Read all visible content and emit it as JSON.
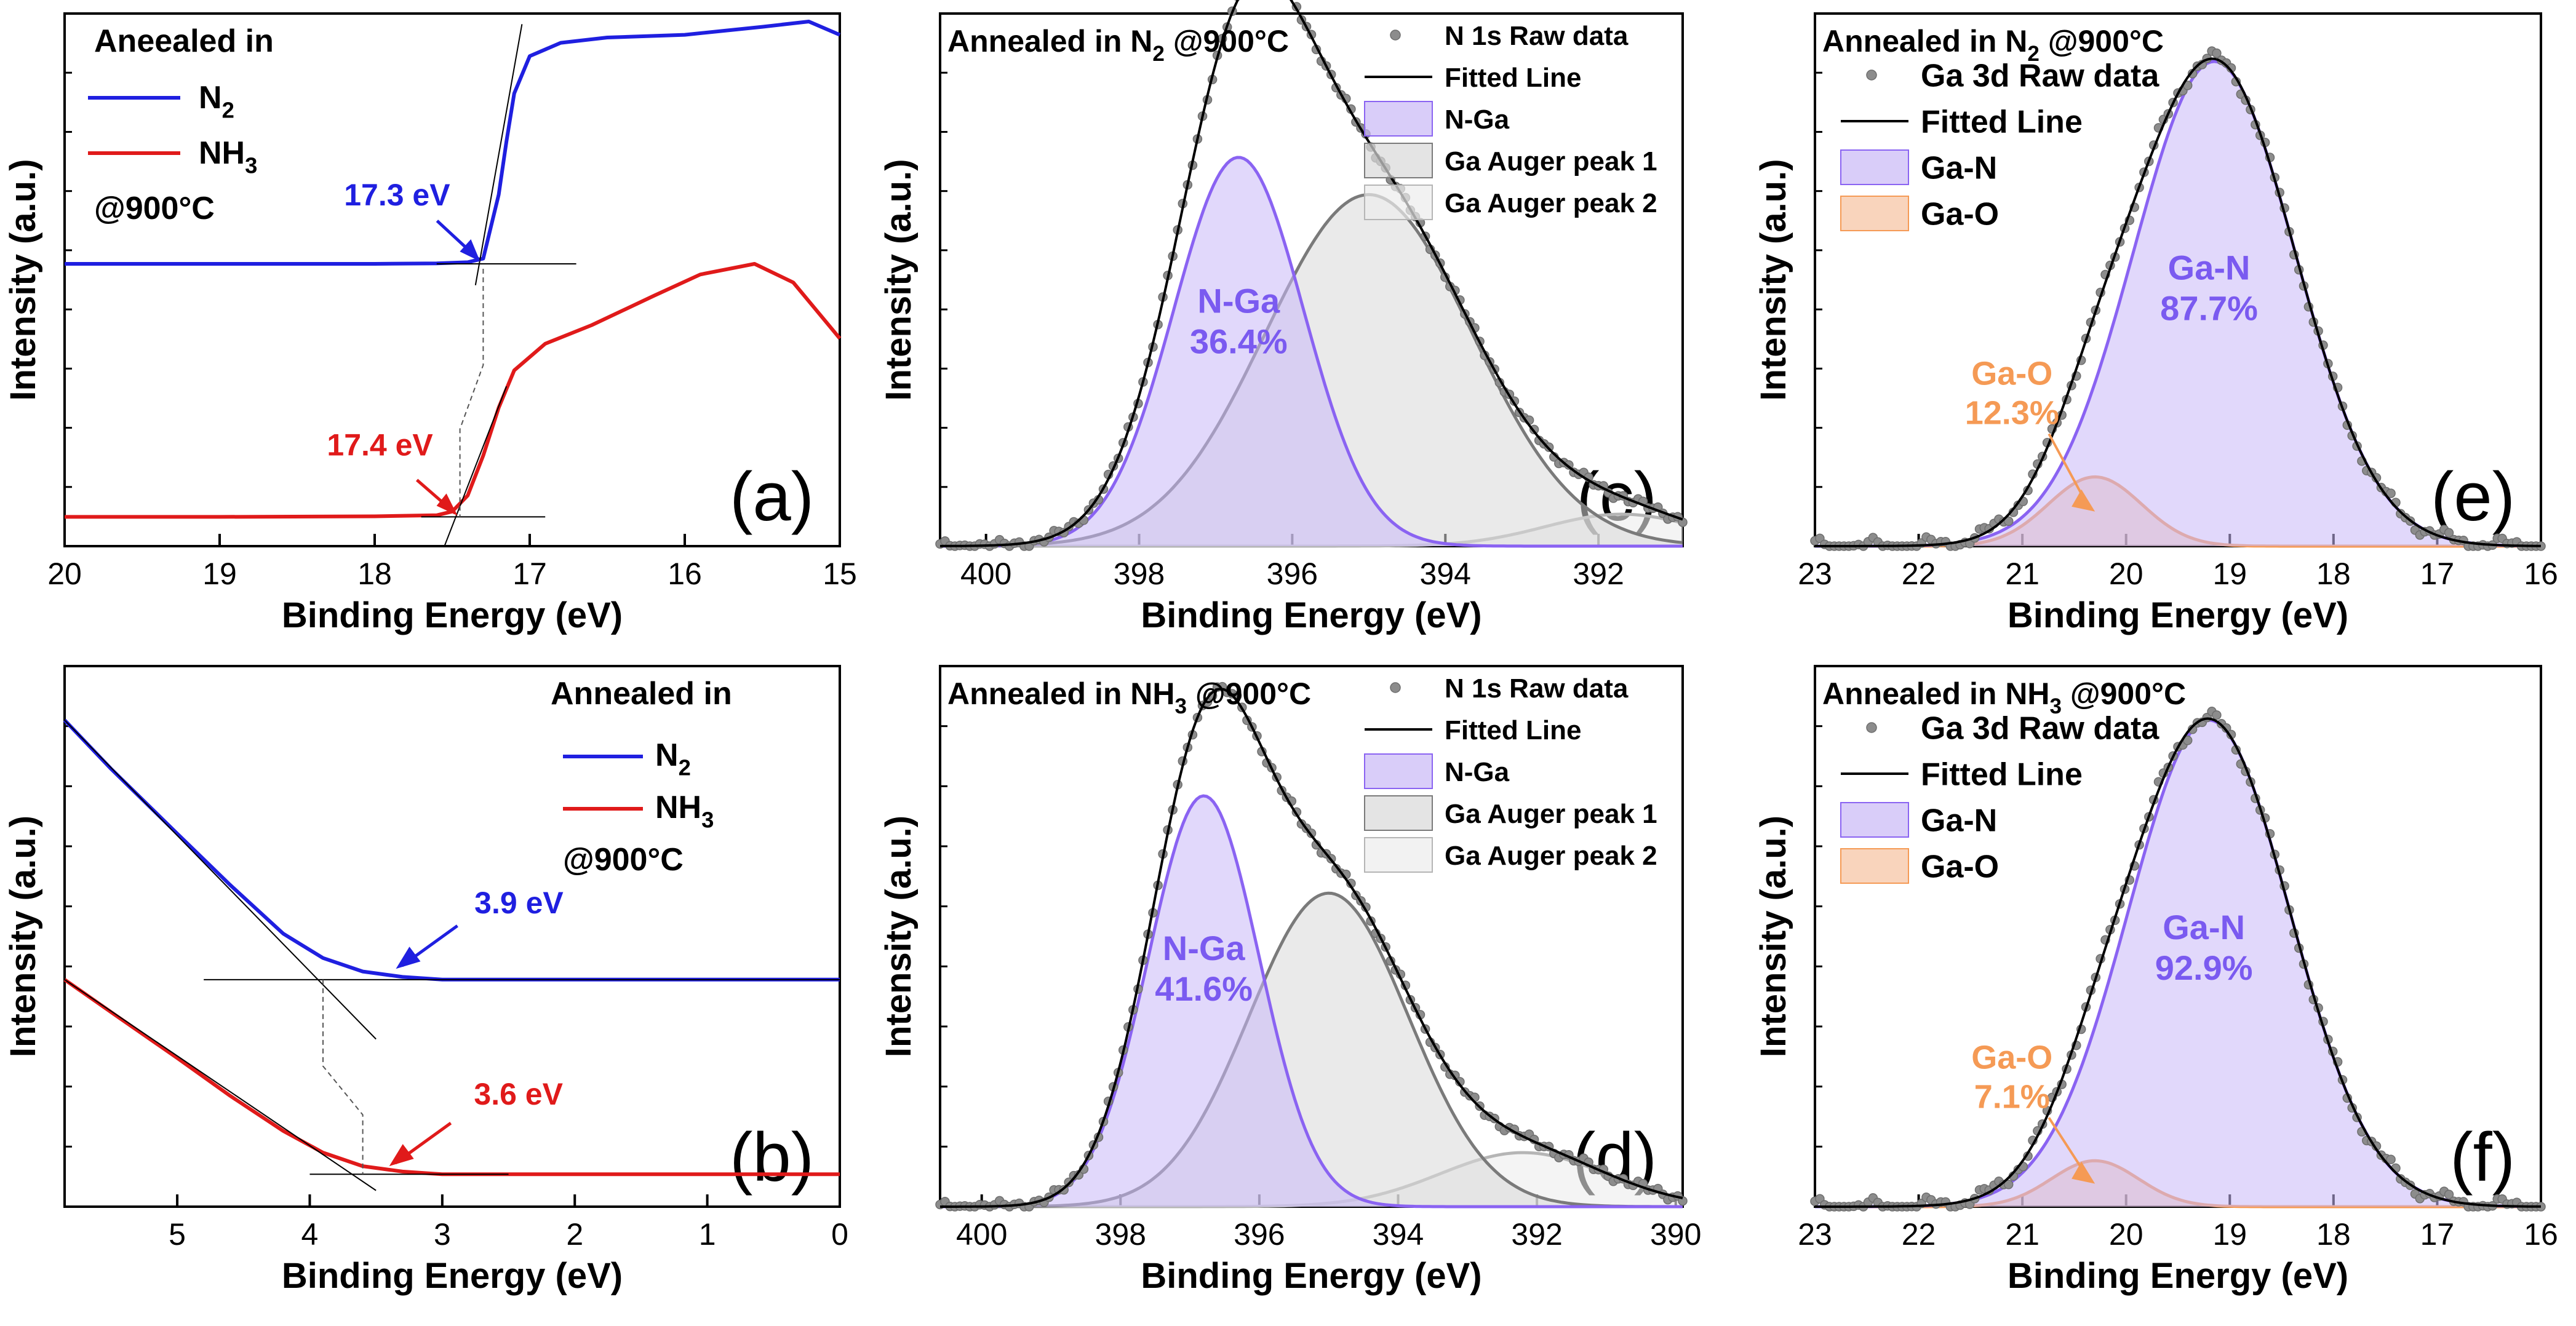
{
  "figure": {
    "colors": {
      "n2": "#1f1fe0",
      "nh3": "#e01a1a",
      "purple_line": "#8a63f2",
      "purple_fill": "#c9b8f7",
      "purple_text": "#7a5af0",
      "grey_line": "#7a7a7a",
      "grey_fill": "#d9d9d9",
      "orange_line": "#f59a55",
      "orange_fill": "#f7c2a0",
      "orange_text": "#f59a55",
      "dot": "#8c8c8c"
    }
  },
  "chart_data": [
    {
      "id": "a",
      "type": "line",
      "panel_label": "(a)",
      "xlabel": "Binding Energy (eV)",
      "ylabel": "Intensity (a.u.)",
      "xlim": [
        20,
        15
      ],
      "ylim": [
        0,
        10
      ],
      "xticks": [
        "20",
        "19",
        "18",
        "17",
        "16",
        "15"
      ],
      "legend": {
        "title": "Aneealed in",
        "entries": [
          "N",
          "NH"
        ],
        "subscripts": [
          "2",
          "3"
        ],
        "footer": "@900°C"
      },
      "series": [
        {
          "name": "N2",
          "x": [
            20,
            19,
            18,
            17.6,
            17.4,
            17.3,
            17.2,
            17.15,
            17.1,
            17.0,
            16.8,
            16.5,
            16.0,
            15.5,
            15.2,
            15.0
          ],
          "y": [
            5.3,
            5.3,
            5.3,
            5.31,
            5.33,
            5.4,
            6.6,
            7.6,
            8.5,
            9.2,
            9.45,
            9.55,
            9.6,
            9.75,
            9.85,
            9.6
          ]
        },
        {
          "name": "NH3",
          "x": [
            20,
            19,
            18,
            17.6,
            17.5,
            17.4,
            17.3,
            17.2,
            17.1,
            16.9,
            16.6,
            16.2,
            15.9,
            15.55,
            15.3,
            15.0
          ],
          "y": [
            0.55,
            0.55,
            0.56,
            0.58,
            0.65,
            0.95,
            1.7,
            2.6,
            3.3,
            3.8,
            4.15,
            4.7,
            5.1,
            5.3,
            4.95,
            3.9
          ]
        }
      ],
      "annotations": [
        {
          "text": "17.3 eV",
          "series": "N2"
        },
        {
          "text": "17.4 eV",
          "series": "NH3"
        }
      ]
    },
    {
      "id": "b",
      "type": "line",
      "panel_label": "(b)",
      "xlabel": "Binding Energy (eV)",
      "ylabel": "Intensity (a.u.)",
      "xlim": [
        5.85,
        0
      ],
      "ylim": [
        0,
        10
      ],
      "xticks": [
        "5",
        "4",
        "3",
        "2",
        "1",
        "0"
      ],
      "legend": {
        "title": "Annealed in",
        "entries": [
          "N",
          "NH"
        ],
        "subscripts": [
          "2",
          "3"
        ],
        "footer": "@900°C"
      },
      "series": [
        {
          "name": "N2",
          "x": [
            5.85,
            5.5,
            5.0,
            4.6,
            4.2,
            3.9,
            3.6,
            3.3,
            3.0,
            2.5,
            2.0,
            1.0,
            0.0
          ],
          "y": [
            9.0,
            8.1,
            6.9,
            5.95,
            5.05,
            4.6,
            4.35,
            4.25,
            4.2,
            4.2,
            4.2,
            4.2,
            4.2
          ]
        },
        {
          "name": "NH3",
          "x": [
            5.85,
            5.5,
            5.0,
            4.6,
            4.2,
            3.9,
            3.6,
            3.3,
            3.0,
            2.5,
            2.0,
            1.0,
            0.0
          ],
          "y": [
            4.2,
            3.6,
            2.75,
            2.05,
            1.4,
            1.0,
            0.75,
            0.65,
            0.6,
            0.6,
            0.6,
            0.6,
            0.6
          ]
        }
      ],
      "annotations": [
        {
          "text": "3.9 eV",
          "series": "N2"
        },
        {
          "text": "3.6 eV",
          "series": "NH3"
        }
      ]
    },
    {
      "id": "c",
      "type": "area",
      "panel_label": "(c)",
      "title": "Annealed in N",
      "title_sub": "2",
      "title_tail": " @900°C",
      "xlabel": "Binding Energy (eV)",
      "ylabel": "Intensity (a.u.)",
      "xlim": [
        400.6,
        390.9
      ],
      "ylim": [
        0,
        10
      ],
      "xticks": [
        "400",
        "398",
        "396",
        "394",
        "392"
      ],
      "legend": [
        "N 1s Raw data",
        "Fitted Line",
        "N-Ga",
        "Ga Auger peak 1",
        "Ga Auger peak 2"
      ],
      "peaks": [
        {
          "name": "N-Ga",
          "center": 396.7,
          "height": 7.3,
          "sigma": 0.85,
          "percent": "36.4%"
        },
        {
          "name": "Ga Auger peak 1",
          "center": 395.0,
          "height": 6.6,
          "sigma": 1.35
        },
        {
          "name": "Ga Auger peak 2",
          "center": 391.7,
          "height": 0.6,
          "sigma": 1.0
        }
      ],
      "peak_label": "N-Ga"
    },
    {
      "id": "d",
      "type": "area",
      "panel_label": "(d)",
      "title": "Annealed in NH",
      "title_sub": "3",
      "title_tail": " @900°C",
      "xlabel": "Binding Energy (eV)",
      "ylabel": "Intensity (a.u.)",
      "xlim": [
        400.6,
        389.9
      ],
      "ylim": [
        0,
        10
      ],
      "xticks": [
        "400",
        "398",
        "396",
        "394",
        "392",
        "390"
      ],
      "legend": [
        "N 1s Raw data",
        "Fitted Line",
        "N-Ga",
        "Ga Auger peak 1",
        "Ga Auger peak 2"
      ],
      "peaks": [
        {
          "name": "N-Ga",
          "center": 396.8,
          "height": 7.6,
          "sigma": 0.8,
          "percent": "41.6%"
        },
        {
          "name": "Ga Auger peak 1",
          "center": 395.0,
          "height": 5.8,
          "sigma": 1.15
        },
        {
          "name": "Ga Auger peak 2",
          "center": 392.2,
          "height": 1.0,
          "sigma": 1.2
        }
      ],
      "peak_label": "N-Ga"
    },
    {
      "id": "e",
      "type": "area",
      "panel_label": "(e)",
      "title": "Annealed in N",
      "title_sub": "2",
      "title_tail": " @900°C",
      "xlabel": "Binding Energy (eV)",
      "ylabel": "Intensity (a.u.)",
      "xlim": [
        23,
        16
      ],
      "ylim": [
        0,
        10
      ],
      "xticks": [
        "23",
        "22",
        "21",
        "20",
        "19",
        "18",
        "17",
        "16"
      ],
      "legend": [
        "Ga 3d Raw data",
        "Fitted Line",
        "Ga-N",
        "Ga-O"
      ],
      "peaks": [
        {
          "name": "Ga-N",
          "center": 19.15,
          "height": 9.1,
          "sigma": 0.78,
          "percent": "87.7%"
        },
        {
          "name": "Ga-O",
          "center": 20.3,
          "height": 1.3,
          "sigma": 0.45,
          "percent": "12.3%"
        }
      ]
    },
    {
      "id": "f",
      "type": "area",
      "panel_label": "(f)",
      "title": "Annealed in NH",
      "title_sub": "3",
      "title_tail": " @900°C",
      "xlabel": "Binding Energy (eV)",
      "ylabel": "Intensity (a.u.)",
      "xlim": [
        23,
        16
      ],
      "ylim": [
        0,
        10
      ],
      "xticks": [
        "23",
        "22",
        "21",
        "20",
        "19",
        "18",
        "17",
        "16"
      ],
      "legend": [
        "Ga 3d Raw data",
        "Fitted Line",
        "Ga-N",
        "Ga-O"
      ],
      "peaks": [
        {
          "name": "Ga-N",
          "center": 19.2,
          "height": 9.0,
          "sigma": 0.78,
          "percent": "92.9%"
        },
        {
          "name": "Ga-O",
          "center": 20.3,
          "height": 0.85,
          "sigma": 0.42,
          "percent": "7.1%"
        }
      ]
    }
  ]
}
